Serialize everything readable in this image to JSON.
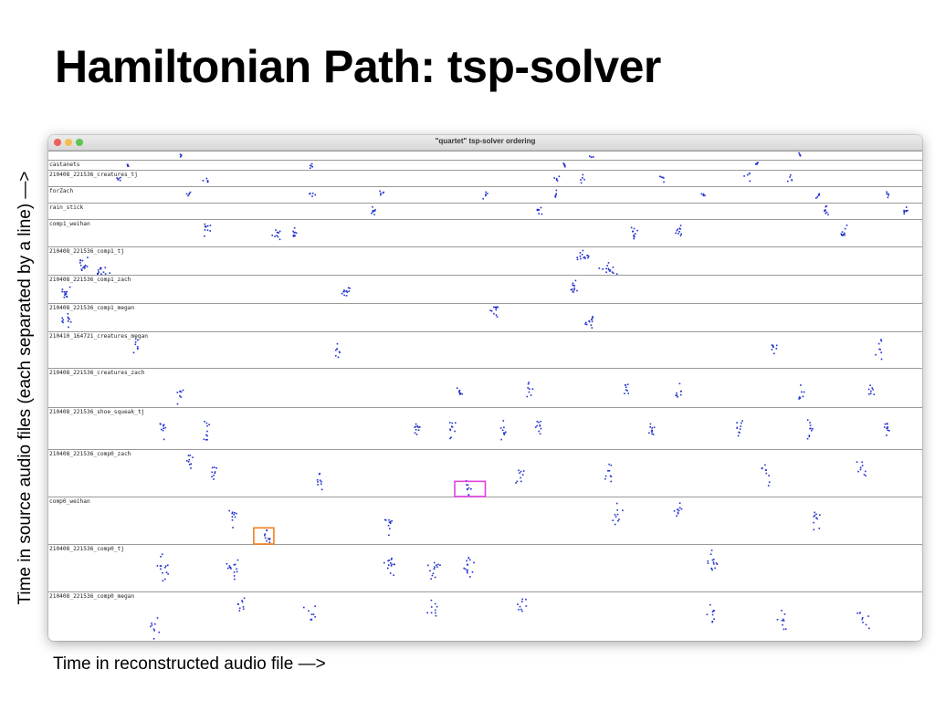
{
  "slide": {
    "title": "Hamiltonian Path: tsp-solver"
  },
  "window": {
    "title": "\"quartet\" tsp-solver ordering"
  },
  "chart_data": {
    "type": "scatter",
    "title": "\"quartet\" tsp-solver ordering",
    "xlabel": "Time in reconstructed audio file —>",
    "ylabel": "Time in source audio files (each separated by a line) —>",
    "marker_color": "#1f2fd0",
    "grid": false,
    "note": "Each band is one source audio file; dots map reconstructed time (x, 0-1) to position within source file (y, 0-1 inside band).",
    "bands": [
      {
        "label": "",
        "height": 10
      },
      {
        "label": "castanets",
        "height": 11
      },
      {
        "label": "210408_221536_creatures_tj",
        "height": 18
      },
      {
        "label": "forZach",
        "height": 18
      },
      {
        "label": "rain_stick",
        "height": 18
      },
      {
        "label": "comp1_weihan",
        "height": 30
      },
      {
        "label": "210408_221536_comp1_tj",
        "height": 31
      },
      {
        "label": "210408_221536_comp1_zach",
        "height": 31
      },
      {
        "label": "210408_221536_comp1_megan",
        "height": 31
      },
      {
        "label": "210410_164721_creatures_megan",
        "height": 40
      },
      {
        "label": "210408_221536_creatures_zach",
        "height": 43
      },
      {
        "label": "210408_221536_shoe_squeak_tj",
        "height": 46
      },
      {
        "label": "210408_221536_comp0_zach",
        "height": 52
      },
      {
        "label": "comp0_weihan",
        "height": 52
      },
      {
        "label": "210408_221536_comp0_tj",
        "height": 52
      },
      {
        "label": "210408_221536_comp0_megan",
        "height": 54
      }
    ],
    "clusters": [
      {
        "band": 0,
        "x": [
          0.15,
          0.62,
          0.86
        ],
        "y": [
          0.4,
          0.6,
          0.4
        ],
        "n": 4,
        "sx": 0.006
      },
      {
        "band": 1,
        "x": [
          0.09,
          0.3,
          0.59,
          0.81
        ],
        "y": [
          0.4,
          0.5,
          0.5,
          0.3
        ],
        "n": 5,
        "sx": 0.004
      },
      {
        "band": 2,
        "x": [
          0.08,
          0.18,
          0.58,
          0.61,
          0.7,
          0.8,
          0.85
        ],
        "y": [
          0.5,
          0.5,
          0.6,
          0.5,
          0.5,
          0.4,
          0.5
        ],
        "n": 5,
        "sx": 0.006
      },
      {
        "band": 3,
        "x": [
          0.16,
          0.3,
          0.38,
          0.5,
          0.58,
          0.75,
          0.88,
          0.96
        ],
        "y": [
          0.4,
          0.5,
          0.4,
          0.5,
          0.4,
          0.4,
          0.4,
          0.4
        ],
        "n": 5,
        "sx": 0.005
      },
      {
        "band": 4,
        "x": [
          0.37,
          0.56,
          0.89,
          0.98
        ],
        "y": [
          0.5,
          0.5,
          0.5,
          0.5
        ],
        "n": 8,
        "sx": 0.005
      },
      {
        "band": 5,
        "x": [
          0.18,
          0.26,
          0.28,
          0.67,
          0.72,
          0.91
        ],
        "y": [
          0.4,
          0.5,
          0.5,
          0.5,
          0.4,
          0.5
        ],
        "n": 10,
        "sx": 0.006
      },
      {
        "band": 6,
        "x": [
          0.04,
          0.06,
          0.61,
          0.64
        ],
        "y": [
          0.65,
          0.85,
          0.3,
          0.8
        ],
        "n": 14,
        "sx": 0.012
      },
      {
        "band": 7,
        "x": [
          0.02,
          0.34,
          0.6
        ],
        "y": [
          0.6,
          0.6,
          0.4
        ],
        "n": 12,
        "sx": 0.007
      },
      {
        "band": 8,
        "x": [
          0.02,
          0.51,
          0.62
        ],
        "y": [
          0.6,
          0.2,
          0.6
        ],
        "n": 12,
        "sx": 0.008
      },
      {
        "band": 9,
        "x": [
          0.1,
          0.33,
          0.83,
          0.95
        ],
        "y": [
          0.4,
          0.5,
          0.4,
          0.5
        ],
        "n": 8,
        "sx": 0.005
      },
      {
        "band": 10,
        "x": [
          0.15,
          0.47,
          0.55,
          0.66,
          0.72,
          0.86,
          0.94
        ],
        "y": [
          0.6,
          0.6,
          0.5,
          0.5,
          0.6,
          0.6,
          0.5
        ],
        "n": 8,
        "sx": 0.006
      },
      {
        "band": 11,
        "x": [
          0.13,
          0.18,
          0.42,
          0.46,
          0.52,
          0.56,
          0.69,
          0.79,
          0.87,
          0.96
        ],
        "y": [
          0.5,
          0.5,
          0.5,
          0.5,
          0.5,
          0.5,
          0.5,
          0.5,
          0.5,
          0.5
        ],
        "n": 10,
        "sx": 0.006
      },
      {
        "band": 12,
        "x": [
          0.16,
          0.19,
          0.31,
          0.48,
          0.54,
          0.64,
          0.82,
          0.93
        ],
        "y": [
          0.2,
          0.5,
          0.6,
          0.8,
          0.5,
          0.5,
          0.5,
          0.4
        ],
        "n": 9,
        "sx": 0.007
      },
      {
        "band": 13,
        "x": [
          0.21,
          0.25,
          0.39,
          0.65,
          0.72,
          0.88
        ],
        "y": [
          0.4,
          0.8,
          0.5,
          0.4,
          0.3,
          0.5
        ],
        "n": 10,
        "sx": 0.008
      },
      {
        "band": 14,
        "x": [
          0.13,
          0.21,
          0.39,
          0.44,
          0.48,
          0.76
        ],
        "y": [
          0.5,
          0.5,
          0.5,
          0.5,
          0.5,
          0.4
        ],
        "n": 14,
        "sx": 0.009
      },
      {
        "band": 15,
        "x": [
          0.12,
          0.22,
          0.3,
          0.44,
          0.54,
          0.76,
          0.84,
          0.93
        ],
        "y": [
          0.75,
          0.3,
          0.4,
          0.3,
          0.3,
          0.4,
          0.6,
          0.6
        ],
        "n": 9,
        "sx": 0.01
      }
    ],
    "highlights": [
      {
        "band": 12,
        "x0": 0.465,
        "x1": 0.5,
        "y0": 0.68,
        "y1": 1.0,
        "color": "#e040e0"
      },
      {
        "band": 13,
        "x0": 0.235,
        "x1": 0.258,
        "y0": 0.66,
        "y1": 1.0,
        "color": "#f08020"
      }
    ]
  }
}
